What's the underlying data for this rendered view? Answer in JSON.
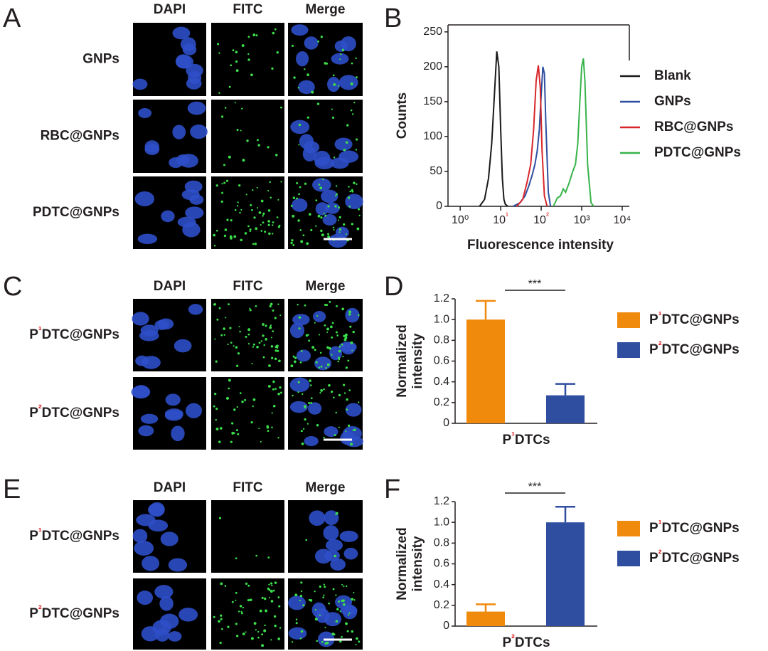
{
  "panel_letters": [
    "A",
    "B",
    "C",
    "D",
    "E",
    "F"
  ],
  "imaging": [
    {
      "columns": [
        "DAPI",
        "FITC",
        "Merge"
      ],
      "rows": [
        "GNPs",
        "RBC@GNPs",
        "PDTC@GNPs"
      ]
    },
    {
      "columns": [
        "DAPI",
        "FITC",
        "Merge"
      ],
      "rows": [
        "P¹DTC@GNPs",
        "P²DTC@GNPs"
      ]
    },
    {
      "columns": [
        "DAPI",
        "FITC",
        "Merge"
      ],
      "rows": [
        "P¹DTC@GNPs",
        "P²DTC@GNPs"
      ]
    }
  ],
  "chart_data": [
    {
      "type": "line",
      "xlabel": "Fluorescence intensity",
      "ylabel": "Counts",
      "xscale": "log",
      "xlim": [
        0.5,
        15000
      ],
      "ylim": [
        0,
        260
      ],
      "xticks": [
        {
          "value": 1,
          "label": "10⁰"
        },
        {
          "value": 10,
          "label": "10¹"
        },
        {
          "value": 100,
          "label": "10²"
        },
        {
          "value": 1000,
          "label": "10³"
        },
        {
          "value": 10000,
          "label": "10⁴"
        }
      ],
      "yticks": [
        0,
        50,
        100,
        150,
        200,
        250
      ],
      "grid": false,
      "legend": "right",
      "series": [
        {
          "name": "Blank",
          "color": "#1a1a1a",
          "x": [
            3,
            4,
            5,
            6,
            7,
            8,
            9,
            10,
            11,
            12,
            13,
            15
          ],
          "values": [
            0,
            10,
            40,
            90,
            160,
            222,
            200,
            110,
            40,
            10,
            3,
            0
          ]
        },
        {
          "name": "GNPs",
          "color": "#2f4ea0",
          "x": [
            20,
            30,
            40,
            50,
            60,
            70,
            80,
            90,
            100,
            110,
            120,
            130,
            150,
            170
          ],
          "values": [
            0,
            5,
            15,
            30,
            45,
            60,
            80,
            110,
            160,
            200,
            190,
            120,
            20,
            0
          ]
        },
        {
          "name": "RBC@GNPs",
          "color": "#d8262b",
          "x": [
            25,
            35,
            45,
            55,
            65,
            75,
            85,
            95,
            105,
            120,
            140
          ],
          "values": [
            0,
            10,
            35,
            60,
            110,
            180,
            202,
            170,
            80,
            15,
            0
          ]
        },
        {
          "name": "PDTC@GNPs",
          "color": "#37b34a",
          "x": [
            200,
            250,
            300,
            350,
            400,
            500,
            600,
            700,
            800,
            900,
            1000,
            1100,
            1200,
            1400,
            1700,
            2000
          ],
          "values": [
            0,
            12,
            15,
            25,
            20,
            35,
            50,
            60,
            90,
            150,
            200,
            212,
            180,
            60,
            5,
            0
          ]
        }
      ]
    },
    {
      "type": "bar",
      "ylabel": [
        "Normalized",
        "intensity"
      ],
      "categories": [
        "P¹DTCs"
      ],
      "ylim": [
        0,
        1.2
      ],
      "yticks": [
        0,
        0.2,
        0.4,
        0.6,
        0.8,
        {
          "value": 1,
          "label": "1.0"
        },
        1.2
      ],
      "annotation": "***",
      "legend": "right",
      "series": [
        {
          "name": "P¹DTC@GNPs",
          "color": "#f08a0c",
          "values": [
            1.0
          ],
          "errors": [
            0.18
          ]
        },
        {
          "name": "P²DTC@GNPs",
          "color": "#2f4ea0",
          "values": [
            0.27
          ],
          "errors": [
            0.11
          ]
        }
      ]
    },
    {
      "type": "bar",
      "ylabel": [
        "Normalized",
        "intensity"
      ],
      "categories": [
        "P²DTCs"
      ],
      "ylim": [
        0,
        1.2
      ],
      "yticks": [
        0,
        0.2,
        0.4,
        0.6,
        0.8,
        {
          "value": 1,
          "label": "1.0"
        },
        1.2
      ],
      "annotation": "***",
      "legend": "right",
      "series": [
        {
          "name": "P¹DTC@GNPs",
          "color": "#f08a0c",
          "values": [
            0.14
          ],
          "errors": [
            0.07
          ]
        },
        {
          "name": "P²DTC@GNPs",
          "color": "#2f4ea0",
          "values": [
            1.0
          ],
          "errors": [
            0.15
          ]
        }
      ]
    }
  ]
}
